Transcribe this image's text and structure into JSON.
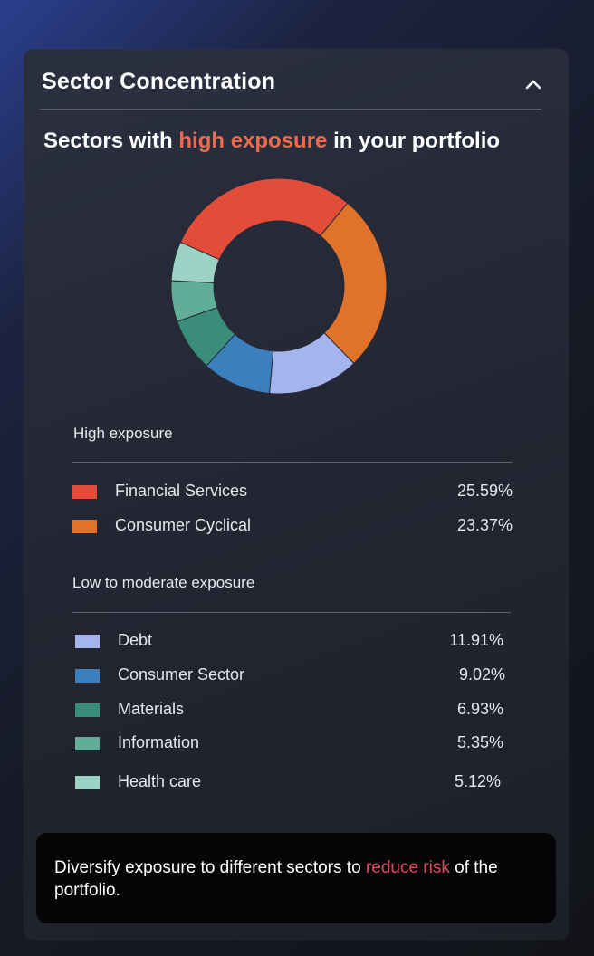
{
  "panel": {
    "title": "Sector Concentration",
    "collapse_icon": "chevron-up-icon"
  },
  "subtitle": {
    "before": "Sectors with ",
    "highlight": "high exposure",
    "after": " in your portfolio",
    "highlight_color": "#ee6a4b"
  },
  "chart_data": {
    "type": "pie",
    "variant": "donut",
    "categories": [
      "Financial Services",
      "Consumer Cyclical",
      "Debt",
      "Consumer Sector",
      "Materials",
      "Information",
      "Health care"
    ],
    "values": [
      25.59,
      23.37,
      11.91,
      9.02,
      6.93,
      5.35,
      5.12
    ],
    "colors": [
      "#e34c38",
      "#e0722a",
      "#a3b5ec",
      "#3b7fbf",
      "#398d79",
      "#61ad98",
      "#9dd3c4"
    ]
  },
  "high_exposure": {
    "label": "High exposure",
    "items": [
      {
        "name": "Financial Services",
        "value": "25.59%",
        "color": "#e34c38"
      },
      {
        "name": "Consumer Cyclical",
        "value": "23.37%",
        "color": "#e0722a"
      }
    ]
  },
  "low_exposure": {
    "label": "Low to moderate exposure",
    "items": [
      {
        "name": "Debt",
        "value": "11.91%",
        "color": "#a3b5ec"
      },
      {
        "name": "Consumer Sector",
        "value": "9.02%",
        "color": "#3b7fbf"
      },
      {
        "name": "Materials",
        "value": "6.93%",
        "color": "#398d79"
      },
      {
        "name": "Information",
        "value": "5.35%",
        "color": "#61ad98"
      },
      {
        "name": "Health care",
        "value": "5.12%",
        "color": "#9dd3c4"
      }
    ]
  },
  "tip": {
    "before": "Diversify exposure to different sectors to ",
    "highlight": "reduce risk",
    "after": " of the portfolio.",
    "highlight_color": "#e2495a"
  }
}
